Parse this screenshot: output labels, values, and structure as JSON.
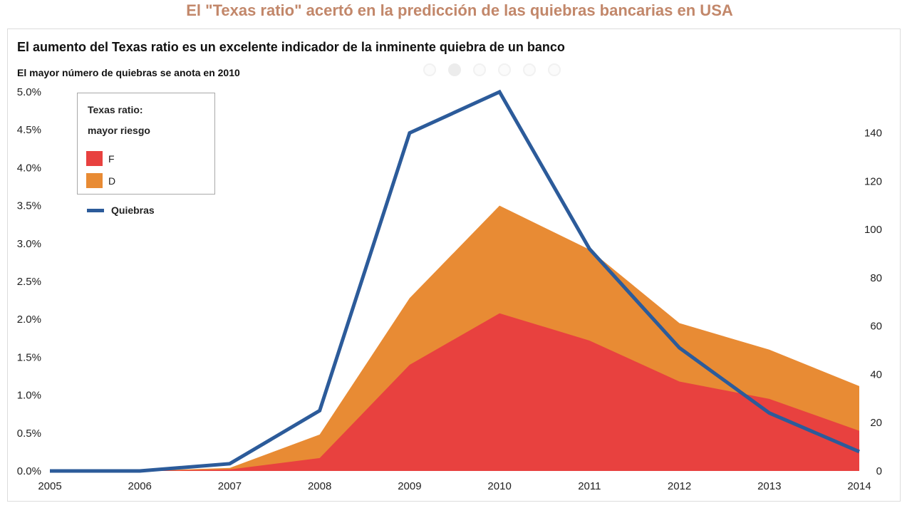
{
  "header": {
    "title": "El \"Texas ratio\" acertó en la predicción de las quiebras bancarias en USA",
    "subtitle": "El aumento del Texas ratio es un excelente indicador de la inminente quiebra de un banco",
    "note": "El mayor número de quiebras se anota en 2010"
  },
  "carousel": {
    "dots": 6,
    "active_index": 1
  },
  "legend": {
    "title_line1": "Texas ratio:",
    "title_line2": "mayor riesgo",
    "items": [
      {
        "label": "F",
        "color": "#e8413f"
      },
      {
        "label": "D",
        "color": "#e88b34"
      }
    ],
    "line_label": "Quiebras",
    "line_color": "#2c5b9a"
  },
  "chart_data": {
    "type": "area",
    "x": [
      "2005",
      "2006",
      "2007",
      "2008",
      "2009",
      "2010",
      "2011",
      "2012",
      "2013",
      "2014"
    ],
    "y_left_ticks": [
      "0.0%",
      "0.5%",
      "1.0%",
      "1.5%",
      "2.0%",
      "2.5%",
      "3.0%",
      "3.5%",
      "4.0%",
      "4.5%",
      "5.0%"
    ],
    "y_left_range": [
      0,
      5.0
    ],
    "y_right_ticks": [
      "0",
      "20",
      "40",
      "60",
      "80",
      "100",
      "120",
      "140"
    ],
    "y_right_range": [
      0,
      157
    ],
    "series": [
      {
        "name": "F",
        "axis": "left",
        "stacked": true,
        "color": "#e8413f",
        "values": [
          0,
          0,
          0.02,
          0.17,
          1.4,
          2.08,
          1.72,
          1.18,
          0.95,
          0.53
        ]
      },
      {
        "name": "D",
        "axis": "left",
        "stacked": true,
        "color": "#e88b34",
        "values": [
          0,
          0,
          0.02,
          0.31,
          0.88,
          1.42,
          1.2,
          0.77,
          0.65,
          0.59
        ]
      },
      {
        "name": "Quiebras",
        "axis": "right",
        "type": "line",
        "color": "#2c5b9a",
        "values": [
          0,
          0,
          3,
          25,
          140,
          157,
          92,
          51,
          24,
          8
        ]
      }
    ],
    "grid": false,
    "legend_position": "top-left"
  }
}
